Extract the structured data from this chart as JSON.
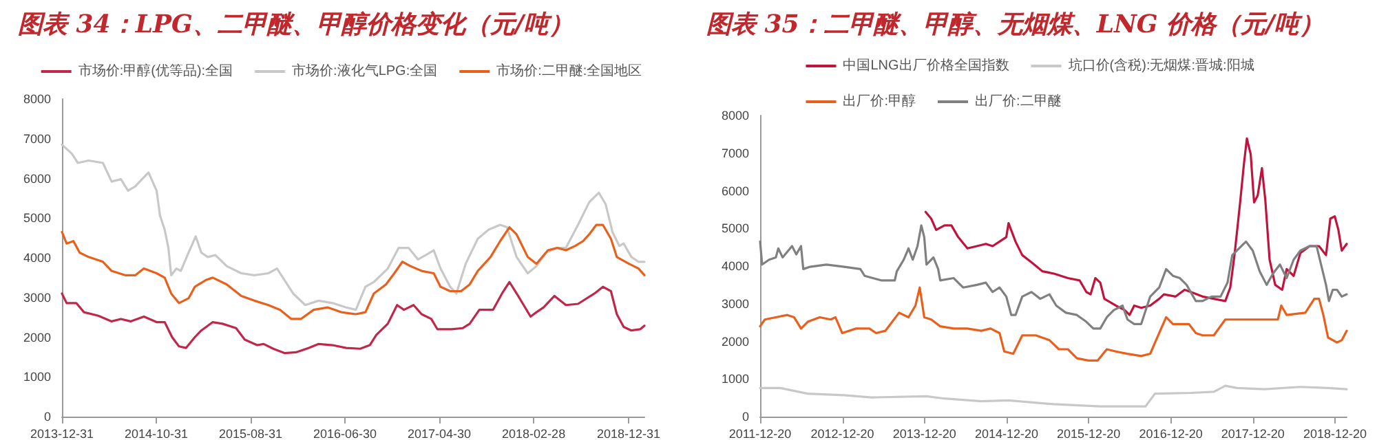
{
  "chart_data": [
    {
      "type": "line",
      "title": "图表 34：LPG、二甲醚、甲醇价格变化（元/吨）",
      "legend": "top",
      "marker": "none",
      "xlim": [
        "2013-12-31",
        "2019-02-20"
      ],
      "xticks": [
        "2013-12-31",
        "2014-10-31",
        "2015-08-31",
        "2016-06-30",
        "2017-04-30",
        "2018-02-28",
        "2018-12-31"
      ],
      "ylim": [
        0,
        8000
      ],
      "yticks": [
        0,
        1000,
        2000,
        3000,
        4000,
        5000,
        6000,
        7000,
        8000
      ],
      "series": [
        {
          "name": "市场价:甲醇(优等品):全国",
          "color": "#c0284a",
          "x": [
            "2013-12-31",
            "2014-01-15",
            "2014-02-15",
            "2014-03-12",
            "2014-04-27",
            "2014-06-09",
            "2014-07-09",
            "2014-08-09",
            "2014-09-21",
            "2014-11-01",
            "2014-11-27",
            "2014-12-21",
            "2015-01-12",
            "2015-02-04",
            "2015-03-04",
            "2015-03-25",
            "2015-05-01",
            "2015-06-01",
            "2015-07-15",
            "2015-08-12",
            "2015-09-21",
            "2015-10-12",
            "2015-11-12",
            "2015-12-18",
            "2016-01-24",
            "2016-03-06",
            "2016-04-06",
            "2016-05-21",
            "2016-07-04",
            "2016-08-18",
            "2016-09-18",
            "2016-10-09",
            "2016-11-15",
            "2016-12-15",
            "2017-01-06",
            "2017-02-06",
            "2017-03-04",
            "2017-04-04",
            "2017-04-24",
            "2017-06-09",
            "2017-07-15",
            "2017-08-06",
            "2017-09-06",
            "2017-10-20",
            "2017-11-18",
            "2017-12-12",
            "2018-01-09",
            "2018-02-18",
            "2018-03-09",
            "2018-04-01",
            "2018-05-06",
            "2018-06-12",
            "2018-07-21",
            "2018-09-12",
            "2018-10-09",
            "2018-11-04",
            "2018-11-23",
            "2018-12-15",
            "2019-01-09",
            "2019-02-06",
            "2019-02-20"
          ],
          "values": [
            3100,
            2860,
            2860,
            2630,
            2540,
            2400,
            2460,
            2400,
            2520,
            2380,
            2380,
            2000,
            1770,
            1730,
            2000,
            2170,
            2380,
            2340,
            2230,
            1940,
            1800,
            1830,
            1710,
            1600,
            1620,
            1730,
            1830,
            1800,
            1730,
            1710,
            1800,
            2060,
            2340,
            2810,
            2690,
            2810,
            2580,
            2460,
            2200,
            2200,
            2230,
            2340,
            2690,
            2690,
            3100,
            3390,
            3040,
            2520,
            2630,
            2750,
            3040,
            2810,
            2840,
            3100,
            3270,
            3160,
            2580,
            2260,
            2170,
            2200,
            2290
          ]
        },
        {
          "name": "市场价:液化气LPG:全国",
          "color": "#c8c8c8",
          "x": [
            "2013-12-31",
            "2014-02-01",
            "2014-02-20",
            "2014-03-27",
            "2014-05-12",
            "2014-06-09",
            "2014-07-09",
            "2014-08-01",
            "2014-08-24",
            "2014-09-15",
            "2014-10-06",
            "2014-11-01",
            "2014-11-12",
            "2014-11-27",
            "2014-12-09",
            "2014-12-18",
            "2015-01-04",
            "2015-01-18",
            "2015-02-12",
            "2015-03-07",
            "2015-03-25",
            "2015-04-15",
            "2015-05-09",
            "2015-06-15",
            "2015-08-01",
            "2015-09-12",
            "2015-10-27",
            "2015-11-24",
            "2015-12-18",
            "2016-01-15",
            "2016-02-23",
            "2016-04-06",
            "2016-05-21",
            "2016-07-04",
            "2016-08-04",
            "2016-09-04",
            "2016-10-01",
            "2016-11-15",
            "2016-12-20",
            "2017-01-21",
            "2017-02-20",
            "2017-03-18",
            "2017-04-12",
            "2017-05-04",
            "2017-06-04",
            "2017-06-24",
            "2017-07-24",
            "2017-09-01",
            "2017-10-06",
            "2017-11-12",
            "2017-12-04",
            "2018-01-04",
            "2018-02-09",
            "2018-03-09",
            "2018-04-09",
            "2018-05-15",
            "2018-06-12",
            "2018-07-21",
            "2018-08-26",
            "2018-09-26",
            "2018-10-18",
            "2018-11-09",
            "2018-12-01",
            "2018-12-15",
            "2019-01-09",
            "2019-02-01",
            "2019-02-20"
          ],
          "values": [
            6850,
            6620,
            6390,
            6450,
            6390,
            5920,
            5980,
            5690,
            5800,
            5980,
            6150,
            5690,
            5060,
            4710,
            4250,
            3560,
            3730,
            3670,
            4130,
            4540,
            4130,
            4020,
            4070,
            3790,
            3610,
            3560,
            3610,
            3730,
            3440,
            3100,
            2810,
            2920,
            2860,
            2750,
            2690,
            3270,
            3390,
            3730,
            4250,
            4250,
            3960,
            4070,
            4190,
            3730,
            3270,
            3100,
            3850,
            4480,
            4710,
            4830,
            4770,
            4020,
            3610,
            3790,
            4130,
            4250,
            4250,
            4830,
            5400,
            5640,
            5350,
            4650,
            4300,
            4360,
            4020,
            3900,
            3900
          ]
        },
        {
          "name": "市场价:二甲醚:全国地区",
          "color": "#e8601c",
          "x": [
            "2013-12-31",
            "2014-01-15",
            "2014-02-06",
            "2014-02-26",
            "2014-03-27",
            "2014-05-12",
            "2014-06-09",
            "2014-07-24",
            "2014-08-24",
            "2014-09-21",
            "2014-11-01",
            "2014-11-27",
            "2014-12-18",
            "2015-01-12",
            "2015-02-12",
            "2015-03-04",
            "2015-04-09",
            "2015-05-01",
            "2015-06-15",
            "2015-08-01",
            "2015-09-12",
            "2015-10-27",
            "2015-12-04",
            "2016-01-09",
            "2016-02-09",
            "2016-03-21",
            "2016-05-06",
            "2016-06-18",
            "2016-08-04",
            "2016-09-04",
            "2016-10-01",
            "2016-11-09",
            "2016-12-06",
            "2017-01-01",
            "2017-01-27",
            "2017-03-04",
            "2017-04-12",
            "2017-05-04",
            "2017-06-04",
            "2017-07-09",
            "2017-08-06",
            "2017-09-01",
            "2017-10-12",
            "2017-11-12",
            "2017-12-12",
            "2018-01-04",
            "2018-02-09",
            "2018-03-09",
            "2018-04-15",
            "2018-05-15",
            "2018-06-12",
            "2018-07-12",
            "2018-08-06",
            "2018-08-26",
            "2018-09-18",
            "2018-10-09",
            "2018-11-04",
            "2018-11-23",
            "2019-01-01",
            "2019-02-01",
            "2019-02-20"
          ],
          "values": [
            4650,
            4360,
            4420,
            4130,
            4020,
            3900,
            3670,
            3560,
            3560,
            3730,
            3610,
            3500,
            3100,
            2860,
            2980,
            3270,
            3440,
            3500,
            3330,
            3040,
            2920,
            2810,
            2690,
            2460,
            2460,
            2690,
            2750,
            2630,
            2580,
            2630,
            3100,
            3330,
            3610,
            3900,
            3790,
            3670,
            3610,
            3270,
            3160,
            3160,
            3330,
            3670,
            4020,
            4420,
            4770,
            4590,
            4020,
            3850,
            4190,
            4250,
            4190,
            4300,
            4420,
            4590,
            4830,
            4830,
            4480,
            4020,
            3850,
            3730,
            3560
          ]
        }
      ]
    },
    {
      "type": "line",
      "title": "图表 35：二甲醚、甲醇、无烟煤、LNG 价格（元/吨）",
      "legend": "top",
      "marker": "none",
      "xlim": [
        "2011-12-20",
        "2019-02-10"
      ],
      "xticks": [
        "2011-12-20",
        "2012-12-20",
        "2013-12-20",
        "2014-12-20",
        "2015-12-20",
        "2016-12-20",
        "2017-12-20",
        "2018-12-20"
      ],
      "ylim": [
        0,
        8000
      ],
      "yticks": [
        0,
        1000,
        2000,
        3000,
        4000,
        5000,
        6000,
        7000,
        8000
      ],
      "series": [
        {
          "name": "中国LNG出厂价格全国指数",
          "color": "#c0143c",
          "x": [
            "2013-12-25",
            "2014-01-19",
            "2014-02-10",
            "2014-03-19",
            "2014-04-19",
            "2014-05-19",
            "2014-06-29",
            "2014-08-10",
            "2014-09-19",
            "2014-10-19",
            "2014-11-19",
            "2014-12-19",
            "2014-12-29",
            "2015-01-29",
            "2015-02-28",
            "2015-04-10",
            "2015-05-29",
            "2015-07-19",
            "2015-09-19",
            "2015-11-10",
            "2015-12-10",
            "2015-12-29",
            "2016-01-19",
            "2016-02-10",
            "2016-02-28",
            "2016-04-19",
            "2016-05-29",
            "2016-06-19",
            "2016-07-10",
            "2016-08-10",
            "2016-09-19",
            "2016-10-29",
            "2016-11-19",
            "2017-01-10",
            "2017-02-19",
            "2017-03-19",
            "2017-05-10",
            "2017-06-29",
            "2017-08-19",
            "2017-09-10",
            "2017-09-29",
            "2017-10-25",
            "2017-11-10",
            "2017-11-23",
            "2017-12-10",
            "2017-12-25",
            "2018-01-10",
            "2018-01-29",
            "2018-02-13",
            "2018-03-04",
            "2018-03-29",
            "2018-04-29",
            "2018-05-19",
            "2018-06-19",
            "2018-07-19",
            "2018-08-29",
            "2018-10-10",
            "2018-11-10",
            "2018-11-29",
            "2018-12-19",
            "2019-01-04",
            "2019-01-19",
            "2019-02-10"
          ],
          "values": [
            5440,
            5260,
            4960,
            5080,
            5080,
            4770,
            4470,
            4530,
            4590,
            4530,
            4650,
            4770,
            5140,
            4650,
            4290,
            4100,
            3860,
            3800,
            3680,
            3620,
            3310,
            3250,
            3680,
            3560,
            3130,
            2950,
            2830,
            2700,
            2950,
            2890,
            2950,
            3130,
            3250,
            3190,
            3370,
            3310,
            3190,
            3130,
            3070,
            3430,
            4290,
            5750,
            6720,
            7390,
            6970,
            5690,
            5870,
            6600,
            5750,
            4170,
            3500,
            3370,
            3920,
            3740,
            4350,
            4530,
            4530,
            4290,
            5260,
            5320,
            4960,
            4410,
            4590
          ]
        },
        {
          "name": "坑口价(含税):无烟煤:晋城:阳城",
          "color": "#c8c8c8",
          "x": [
            "2011-12-20",
            "2012-03-19",
            "2012-07-19",
            "2012-12-29",
            "2013-04-29",
            "2013-12-29",
            "2014-03-19",
            "2014-08-29",
            "2014-12-29",
            "2015-07-19",
            "2016-02-10",
            "2016-08-29",
            "2016-10-10",
            "2017-03-19",
            "2017-06-29",
            "2017-08-19",
            "2017-10-10",
            "2018-02-10",
            "2018-07-19",
            "2018-11-19",
            "2019-02-10"
          ],
          "values": [
            760,
            760,
            610,
            570,
            510,
            540,
            480,
            410,
            430,
            330,
            270,
            270,
            610,
            630,
            660,
            820,
            760,
            730,
            790,
            760,
            730
          ]
        },
        {
          "name": "出厂价:甲醇",
          "color": "#e8601c",
          "x": [
            "2011-12-20",
            "2012-01-10",
            "2012-02-28",
            "2012-04-19",
            "2012-05-19",
            "2012-06-19",
            "2012-07-19",
            "2012-09-10",
            "2012-10-29",
            "2012-11-19",
            "2012-12-19",
            "2013-02-19",
            "2013-04-19",
            "2013-05-19",
            "2013-06-29",
            "2013-08-29",
            "2013-10-10",
            "2013-11-10",
            "2013-11-29",
            "2013-12-19",
            "2014-01-19",
            "2014-02-28",
            "2014-04-29",
            "2014-06-29",
            "2014-08-29",
            "2014-10-10",
            "2014-11-19",
            "2014-12-10",
            "2015-01-19",
            "2015-02-28",
            "2015-04-29",
            "2015-06-29",
            "2015-08-10",
            "2015-09-19",
            "2015-10-29",
            "2015-12-19",
            "2016-01-29",
            "2016-03-10",
            "2016-04-19",
            "2016-06-10",
            "2016-08-10",
            "2016-09-19",
            "2016-10-29",
            "2016-11-29",
            "2016-12-29",
            "2017-02-10",
            "2017-03-10",
            "2017-04-10",
            "2017-05-10",
            "2017-06-29",
            "2017-08-19",
            "2017-10-10",
            "2017-12-29",
            "2018-04-10",
            "2018-04-25",
            "2018-05-19",
            "2018-08-10",
            "2018-09-19",
            "2018-10-10",
            "2018-10-29",
            "2018-11-19",
            "2018-12-29",
            "2019-01-19",
            "2019-02-10"
          ],
          "values": [
            2400,
            2580,
            2640,
            2700,
            2640,
            2340,
            2520,
            2640,
            2580,
            2640,
            2220,
            2340,
            2340,
            2220,
            2280,
            2760,
            2640,
            2950,
            3430,
            2640,
            2580,
            2400,
            2340,
            2340,
            2280,
            2340,
            2220,
            1730,
            1670,
            2160,
            2160,
            2030,
            1790,
            1790,
            1550,
            1490,
            1490,
            1790,
            1730,
            1670,
            1610,
            1670,
            2220,
            2640,
            2460,
            2460,
            2460,
            2220,
            2160,
            2160,
            2580,
            2580,
            2580,
            2580,
            2950,
            2700,
            2760,
            3130,
            3130,
            2700,
            2100,
            1970,
            2030,
            2280
          ]
        },
        {
          "name": "出厂价:二甲醚",
          "color": "#808080",
          "x": [
            "2011-12-20",
            "2011-12-29",
            "2012-01-29",
            "2012-02-28",
            "2012-03-10",
            "2012-03-29",
            "2012-05-10",
            "2012-05-29",
            "2012-06-19",
            "2012-06-29",
            "2012-07-29",
            "2012-10-10",
            "2012-12-29",
            "2013-03-10",
            "2013-03-29",
            "2013-06-10",
            "2013-08-10",
            "2013-08-19",
            "2013-09-19",
            "2013-10-10",
            "2013-10-29",
            "2013-11-19",
            "2013-12-06",
            "2013-12-19",
            "2013-12-29",
            "2014-01-29",
            "2014-02-19",
            "2014-02-28",
            "2014-04-29",
            "2014-06-10",
            "2014-08-10",
            "2014-09-19",
            "2014-10-19",
            "2014-11-19",
            "2014-12-19",
            "2015-01-10",
            "2015-01-29",
            "2015-02-28",
            "2015-04-10",
            "2015-05-19",
            "2015-06-29",
            "2015-07-29",
            "2015-09-10",
            "2015-10-29",
            "2015-12-10",
            "2016-01-10",
            "2016-02-10",
            "2016-03-10",
            "2016-04-10",
            "2016-05-19",
            "2016-06-10",
            "2016-07-10",
            "2016-08-10",
            "2016-09-19",
            "2016-10-29",
            "2016-11-29",
            "2016-12-29",
            "2017-01-29",
            "2017-02-28",
            "2017-04-10",
            "2017-05-10",
            "2017-06-19",
            "2017-07-29",
            "2017-08-29",
            "2017-09-19",
            "2017-10-19",
            "2017-11-19",
            "2017-12-19",
            "2018-01-19",
            "2018-02-19",
            "2018-03-19",
            "2018-04-19",
            "2018-05-19",
            "2018-06-19",
            "2018-07-19",
            "2018-08-29",
            "2018-09-29",
            "2018-10-19",
            "2018-11-10",
            "2018-11-23",
            "2018-12-10",
            "2018-12-29",
            "2019-01-19",
            "2019-02-10"
          ],
          "values": [
            4650,
            4040,
            4170,
            4230,
            4470,
            4230,
            4530,
            4310,
            4530,
            3920,
            3980,
            4040,
            3980,
            3920,
            3740,
            3620,
            3620,
            3860,
            4170,
            4470,
            4170,
            4530,
            5080,
            4770,
            4040,
            4230,
            3920,
            3620,
            3680,
            3430,
            3500,
            3560,
            3310,
            3430,
            3190,
            2700,
            2700,
            3190,
            3310,
            3130,
            3250,
            2950,
            2760,
            2700,
            2520,
            2340,
            2340,
            2640,
            2830,
            2950,
            2580,
            2460,
            2460,
            3190,
            3430,
            3920,
            3740,
            3680,
            3500,
            3070,
            3070,
            3190,
            3190,
            3560,
            4290,
            4470,
            4650,
            4410,
            3860,
            3500,
            3800,
            4040,
            3680,
            4170,
            4410,
            4530,
            4530,
            4040,
            3500,
            3070,
            3370,
            3370,
            3190,
            3250
          ]
        }
      ]
    }
  ]
}
